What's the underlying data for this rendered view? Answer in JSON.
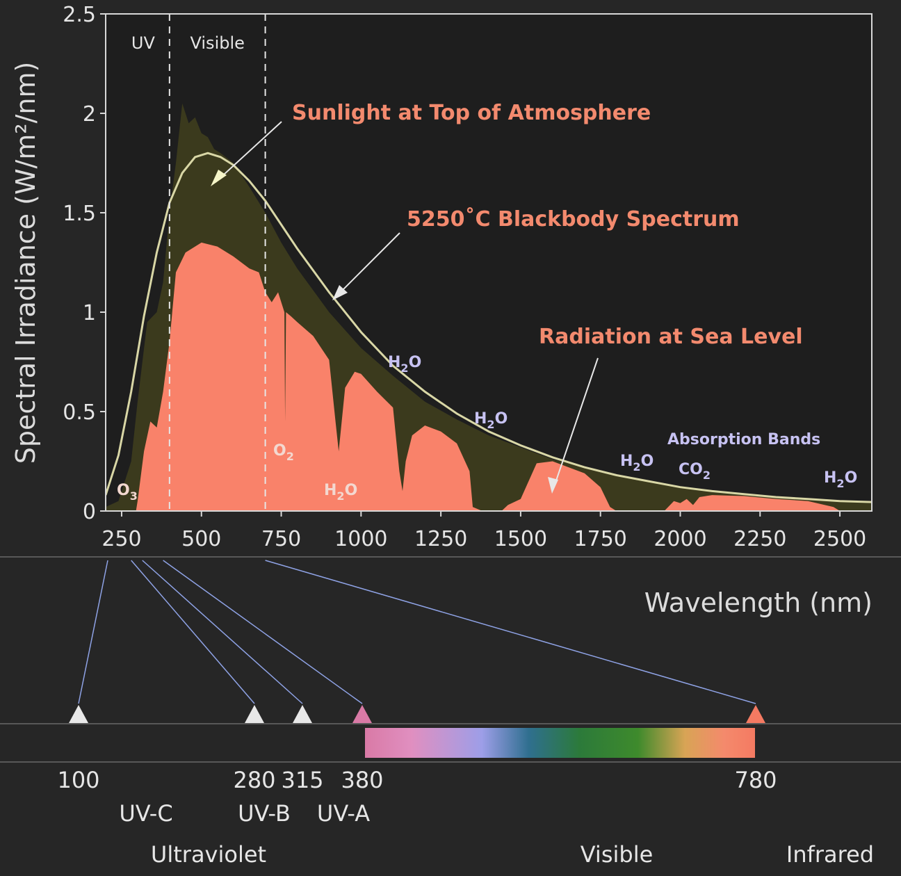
{
  "chart_data": {
    "type": "area",
    "ylabel": "Spectral Irradiance (W/m²/nm)",
    "xlabel": "Wavelength (nm)",
    "xlim": [
      200,
      2600
    ],
    "ylim": [
      0,
      2.5
    ],
    "x_ticks": [
      250,
      500,
      750,
      1000,
      1250,
      1500,
      1750,
      2000,
      2250,
      2500
    ],
    "y_ticks": [
      {
        "value": 0,
        "label": "0"
      },
      {
        "value": 0.5,
        "label": "0.5"
      },
      {
        "value": 1,
        "label": "1"
      },
      {
        "value": 1.5,
        "label": "1.5"
      },
      {
        "value": 2,
        "label": "2"
      },
      {
        "value": 2.5,
        "label": "2.5"
      }
    ],
    "regions": [
      {
        "label": "UV",
        "from": 200,
        "to": 400
      },
      {
        "label": "Visible",
        "from": 400,
        "to": 700
      }
    ],
    "region_boundaries": [
      400,
      700
    ],
    "series": [
      {
        "name": "5250˚C Blackbody Spectrum",
        "kind": "line",
        "color": "#d9d7a6",
        "x": [
          200,
          240,
          280,
          320,
          360,
          400,
          440,
          480,
          520,
          560,
          600,
          650,
          700,
          800,
          900,
          1000,
          1100,
          1200,
          1300,
          1400,
          1500,
          1600,
          1700,
          1800,
          1900,
          2000,
          2100,
          2200,
          2300,
          2400,
          2500,
          2600
        ],
        "y": [
          0.08,
          0.28,
          0.6,
          0.98,
          1.3,
          1.55,
          1.7,
          1.78,
          1.8,
          1.78,
          1.74,
          1.66,
          1.56,
          1.32,
          1.1,
          0.9,
          0.73,
          0.6,
          0.49,
          0.4,
          0.33,
          0.27,
          0.22,
          0.18,
          0.15,
          0.12,
          0.1,
          0.085,
          0.07,
          0.06,
          0.05,
          0.045
        ]
      },
      {
        "name": "Sunlight at Top of Atmosphere",
        "kind": "area",
        "color": "#3b3a1d",
        "x": [
          200,
          240,
          280,
          300,
          330,
          360,
          380,
          400,
          420,
          440,
          460,
          480,
          500,
          520,
          540,
          560,
          600,
          650,
          700,
          750,
          800,
          900,
          1000,
          1100,
          1200,
          1300,
          1400,
          1500,
          1600,
          1700,
          1800,
          1900,
          2000,
          2100,
          2200,
          2300,
          2400,
          2500,
          2600
        ],
        "y": [
          0.02,
          0.05,
          0.25,
          0.55,
          0.95,
          1.0,
          1.15,
          1.5,
          1.75,
          2.05,
          1.95,
          1.98,
          1.9,
          1.88,
          1.82,
          1.8,
          1.75,
          1.63,
          1.5,
          1.35,
          1.22,
          1.0,
          0.82,
          0.68,
          0.55,
          0.46,
          0.38,
          0.32,
          0.26,
          0.22,
          0.18,
          0.15,
          0.12,
          0.1,
          0.085,
          0.07,
          0.06,
          0.05,
          0.045
        ]
      },
      {
        "name": "Radiation at Sea Level",
        "kind": "area",
        "color": "#f9826a",
        "x": [
          200,
          295,
          300,
          320,
          340,
          360,
          380,
          400,
          420,
          450,
          500,
          550,
          600,
          650,
          680,
          700,
          720,
          740,
          760,
          762,
          765,
          780,
          800,
          850,
          900,
          920,
          930,
          950,
          980,
          1000,
          1050,
          1100,
          1120,
          1130,
          1140,
          1160,
          1200,
          1250,
          1300,
          1340,
          1350,
          1380,
          1400,
          1440,
          1460,
          1500,
          1550,
          1600,
          1650,
          1700,
          1750,
          1780,
          1800,
          1850,
          1900,
          1950,
          1980,
          2000,
          2020,
          2040,
          2060,
          2100,
          2200,
          2300,
          2400,
          2480,
          2500,
          2600
        ],
        "y": [
          0,
          0,
          0.05,
          0.3,
          0.45,
          0.42,
          0.6,
          0.85,
          1.2,
          1.3,
          1.35,
          1.33,
          1.28,
          1.22,
          1.2,
          1.1,
          1.05,
          1.1,
          1.0,
          0.45,
          1.0,
          0.98,
          0.95,
          0.88,
          0.76,
          0.45,
          0.3,
          0.62,
          0.7,
          0.69,
          0.6,
          0.52,
          0.2,
          0.1,
          0.25,
          0.38,
          0.43,
          0.4,
          0.34,
          0.2,
          0.02,
          0,
          0,
          0,
          0.03,
          0.06,
          0.24,
          0.25,
          0.22,
          0.19,
          0.12,
          0.02,
          0,
          0,
          0,
          0,
          0.05,
          0.04,
          0.06,
          0.03,
          0.07,
          0.08,
          0.075,
          0.06,
          0.05,
          0.02,
          0,
          0
        ]
      }
    ],
    "annotations": {
      "sunlight": "Sunlight at Top of Atmosphere",
      "blackbody": "5250˚C Blackbody Spectrum",
      "sea_level": "Radiation at Sea Level",
      "absorption": "Absorption Bands"
    },
    "absorption_bands": [
      {
        "main": "O",
        "sub": "3",
        "tail": "",
        "color": "#f3d8d0"
      },
      {
        "main": "O",
        "sub": "2",
        "tail": "",
        "color": "#f3d8d0"
      },
      {
        "main": "H",
        "sub": "2",
        "tail": "O",
        "color": "#f3d8d0"
      },
      {
        "main": "H",
        "sub": "2",
        "tail": "O",
        "color": "#c7c2f2"
      },
      {
        "main": "H",
        "sub": "2",
        "tail": "O",
        "color": "#c7c2f2"
      },
      {
        "main": "H",
        "sub": "2",
        "tail": "O",
        "color": "#c7c2f2"
      },
      {
        "main": "CO",
        "sub": "2",
        "tail": "",
        "color": "#c7c2f2"
      },
      {
        "main": "H",
        "sub": "2",
        "tail": "O",
        "color": "#c7c2f2"
      }
    ]
  },
  "spectrum_scale": {
    "markers": [
      {
        "value": "100",
        "maps_to": 200
      },
      {
        "value": "280",
        "maps_to": 280
      },
      {
        "value": "315",
        "maps_to": 315
      },
      {
        "value": "380",
        "maps_to": 380
      },
      {
        "value": "780",
        "maps_to": 700
      }
    ],
    "subbands": [
      "UV-C",
      "UV-B",
      "UV-A"
    ],
    "regions": [
      "Ultraviolet",
      "Visible",
      "Infrared"
    ]
  }
}
